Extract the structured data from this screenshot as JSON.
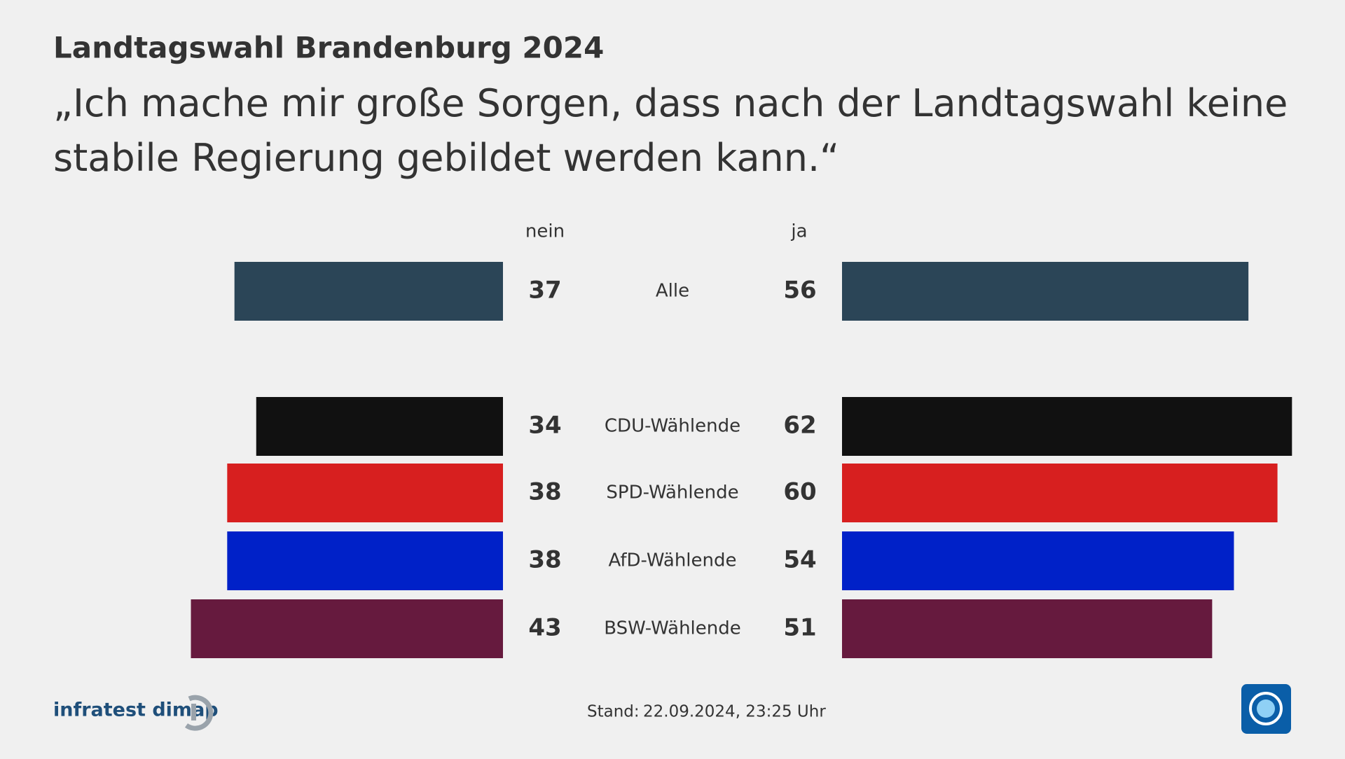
{
  "chart_data": {
    "type": "diverging-bar",
    "title": "Landtagswahl Brandenburg 2024",
    "subtitle": "„Ich mache mir große Sorgen, dass nach der Landtagswahl keine stabile Regierung gebildet werden kann.“",
    "categories": [
      "Alle",
      "CDU-Wählende",
      "SPD-Wählende",
      "AfD-Wählende",
      "BSW-Wählende"
    ],
    "colors": [
      "#2b4557",
      "#111111",
      "#d71f1f",
      "#0021c8",
      "#661a3e"
    ],
    "series": [
      {
        "name": "nein",
        "values": [
          37,
          34,
          38,
          38,
          43
        ]
      },
      {
        "name": "ja",
        "values": [
          56,
          62,
          60,
          54,
          51
        ]
      }
    ],
    "source": "infratest dimap",
    "stand_label": "Stand:",
    "stand": "22.09.2024, 23:25 Uhr"
  }
}
